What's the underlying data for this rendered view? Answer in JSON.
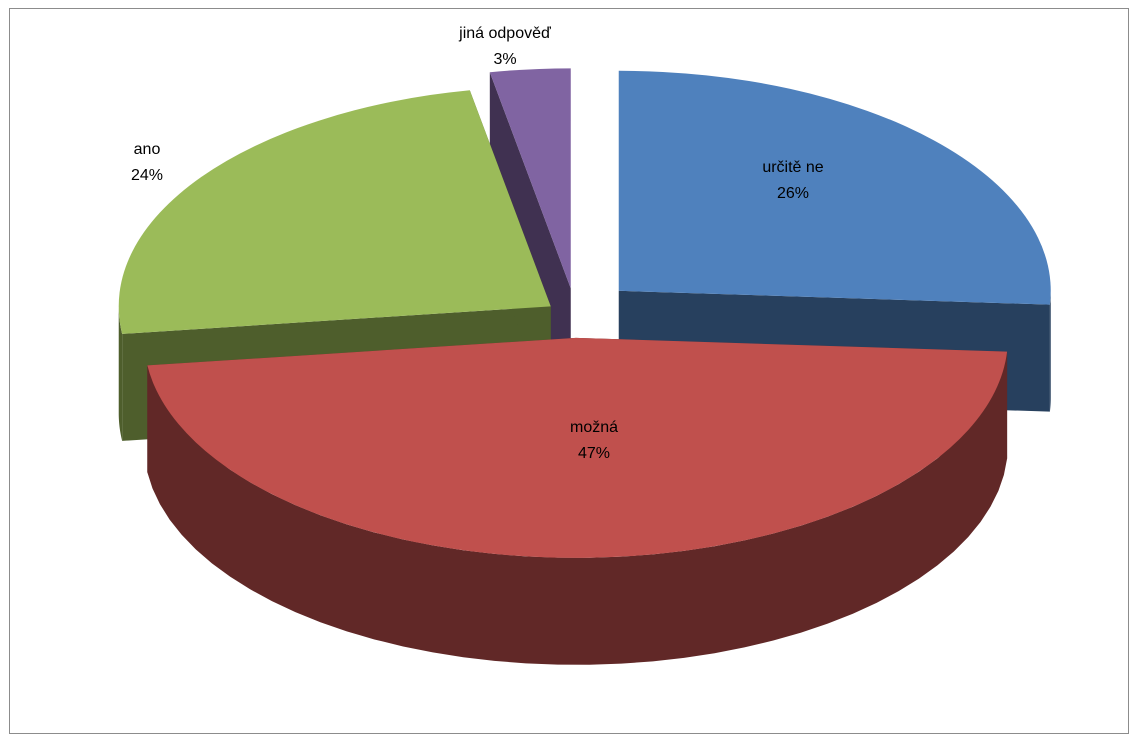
{
  "chart_data": {
    "type": "pie",
    "variant": "3d-exploded",
    "slices": [
      {
        "label": "určitě ne",
        "value": 26,
        "value_label": "26%",
        "color": "#4f81bd",
        "side_color": "#27405e"
      },
      {
        "label": "možná",
        "value": 47,
        "value_label": "47%",
        "color": "#c0504d",
        "side_color": "#612827"
      },
      {
        "label": "ano",
        "value": 24,
        "value_label": "24%",
        "color": "#9bbb59",
        "side_color": "#4e5e2c"
      },
      {
        "label": "jiná odpověď",
        "value": 3,
        "value_label": "3%",
        "color": "#8064a2",
        "side_color": "#403151"
      }
    ],
    "data_labels": "category-and-percent",
    "legend": "none",
    "title": ""
  }
}
